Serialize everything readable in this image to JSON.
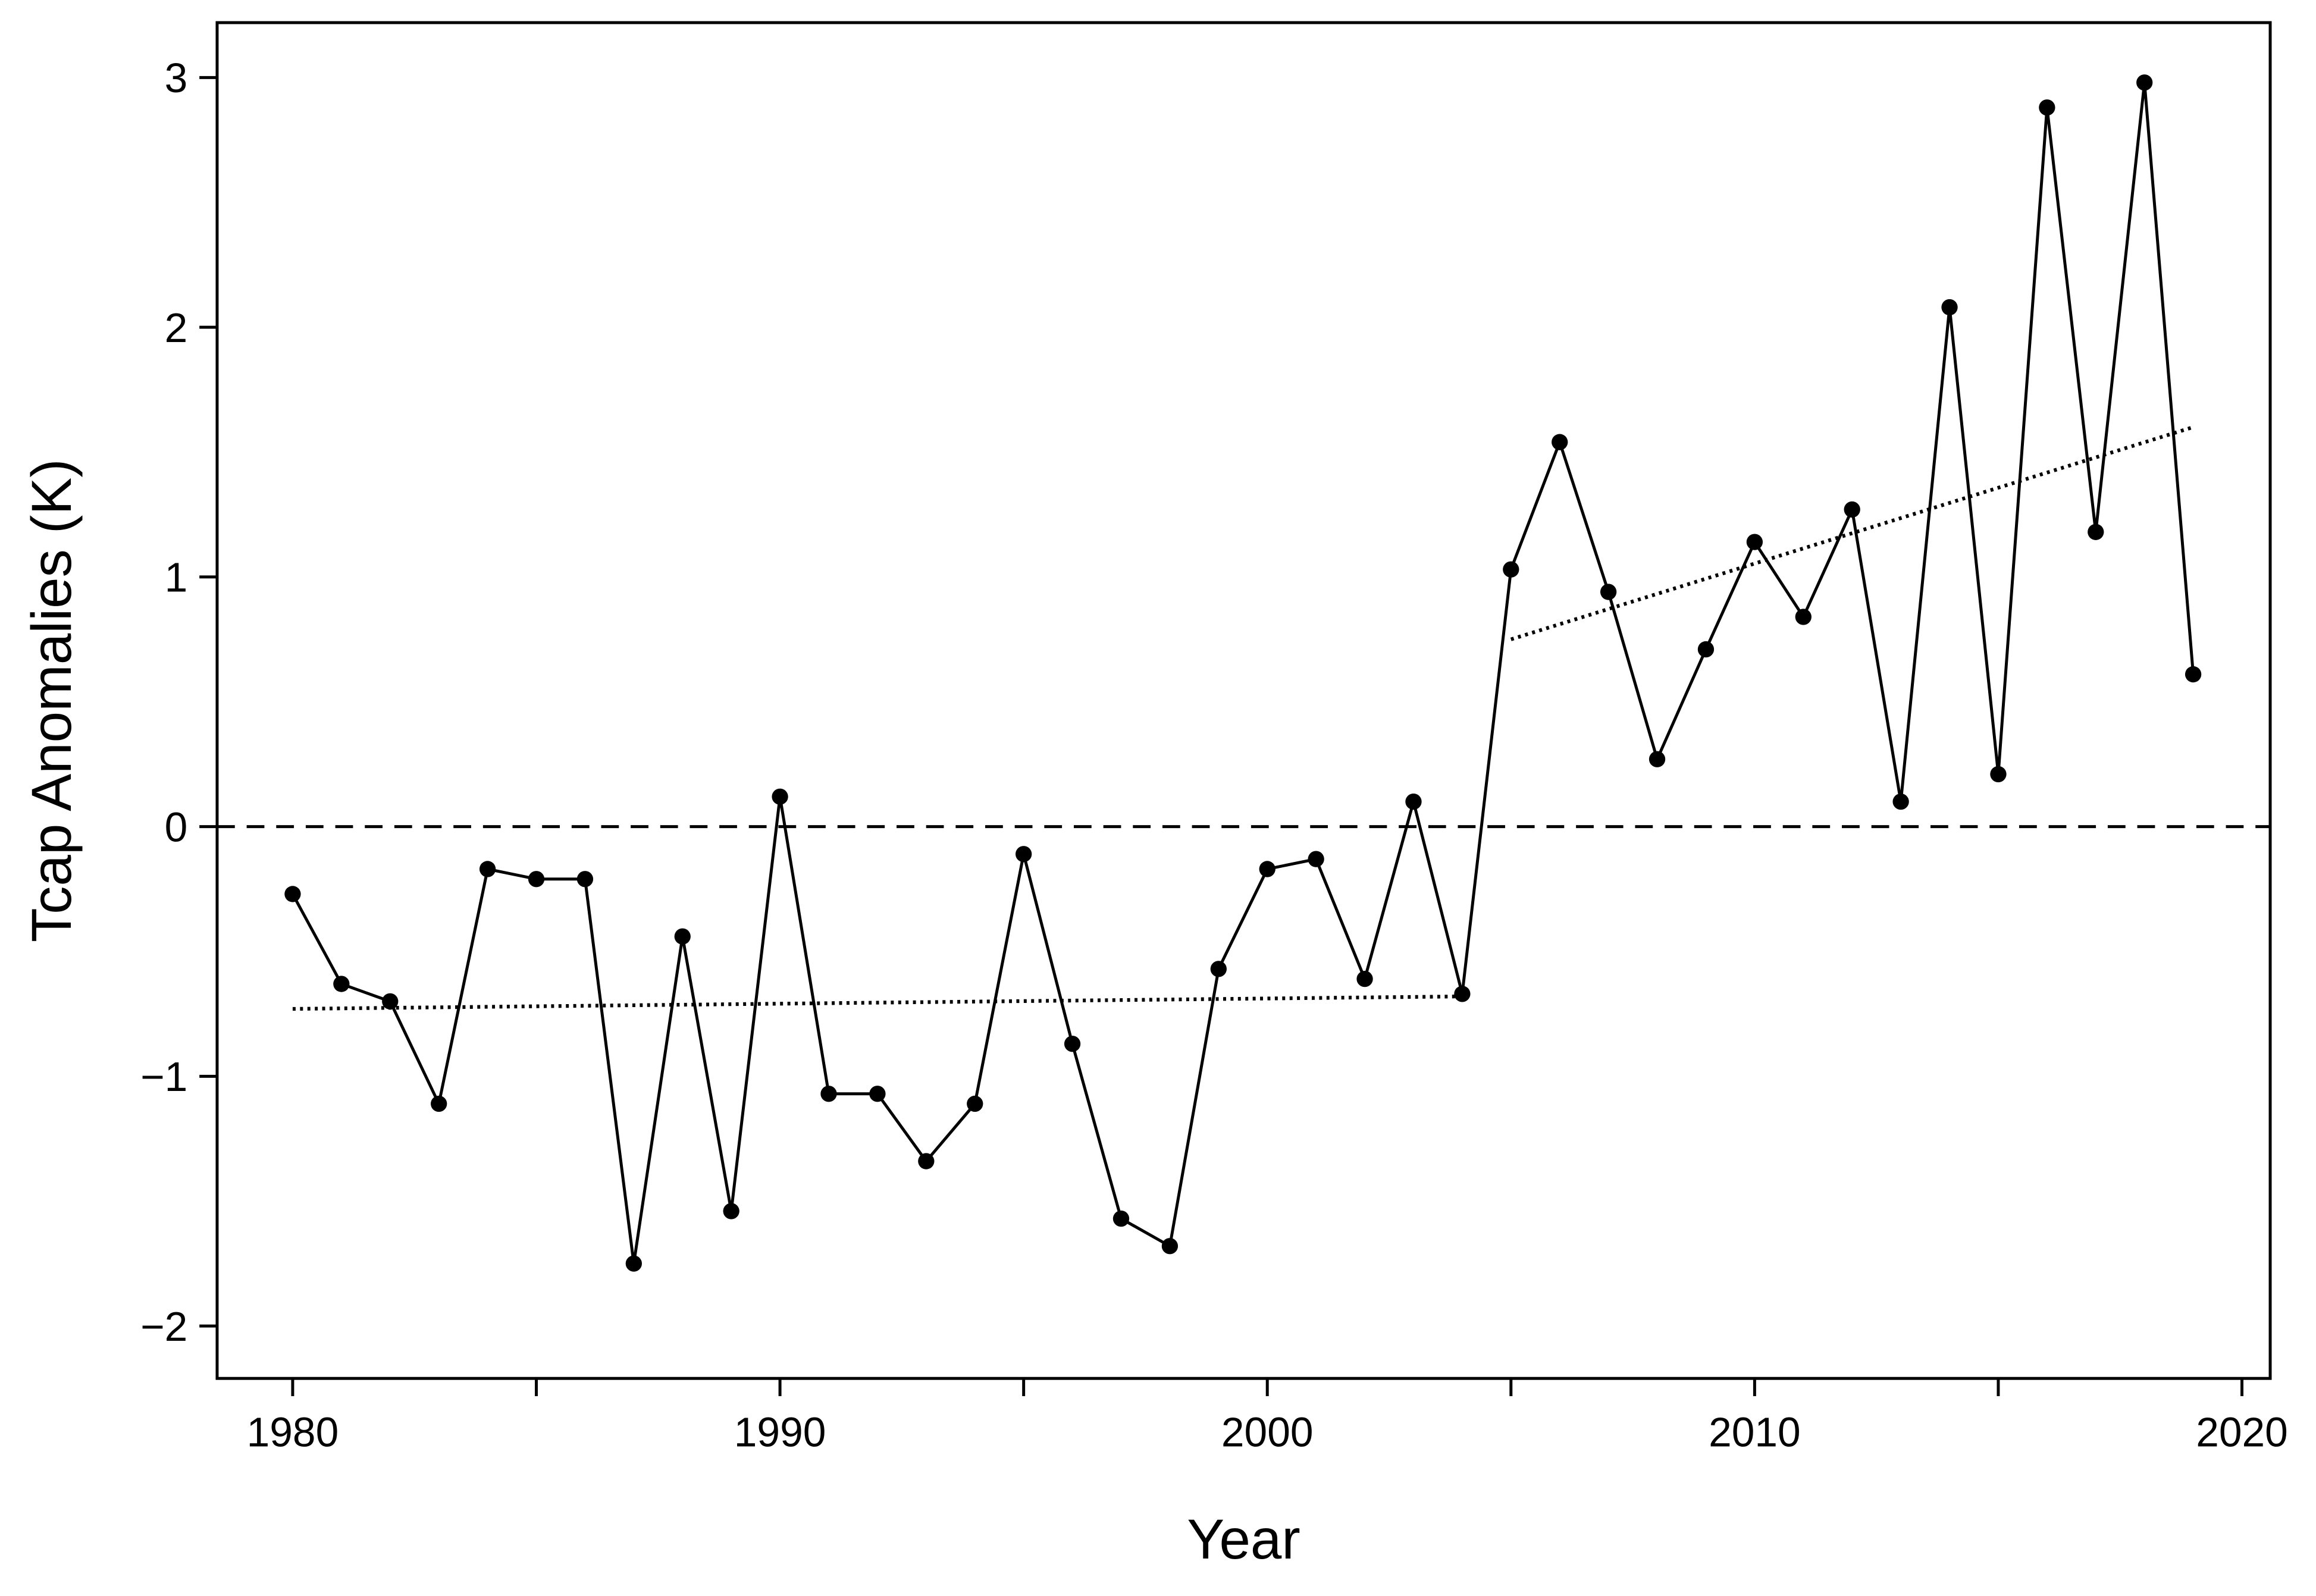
{
  "chart_data": {
    "type": "line",
    "x_label": "Year",
    "y_label": "Tcap Anomalies (K)",
    "x": [
      1980,
      1981,
      1982,
      1983,
      1984,
      1985,
      1986,
      1987,
      1988,
      1989,
      1990,
      1991,
      1992,
      1993,
      1994,
      1995,
      1996,
      1997,
      1998,
      1999,
      2000,
      2001,
      2002,
      2003,
      2004,
      2005,
      2006,
      2007,
      2008,
      2009,
      2010,
      2011,
      2012,
      2013,
      2014,
      2015,
      2016,
      2017,
      2018,
      2019
    ],
    "series": [
      {
        "color": "#000000",
        "values": [
          -0.27,
          -0.63,
          -0.7,
          -1.11,
          -0.17,
          -0.21,
          -0.21,
          -1.75,
          -0.44,
          -1.54,
          0.12,
          -1.07,
          -1.07,
          -1.34,
          -1.11,
          -0.11,
          -0.87,
          -1.57,
          -1.68,
          -0.57,
          -0.17,
          -0.13,
          -0.61,
          0.1,
          -0.67,
          1.03,
          1.54,
          0.94,
          0.27,
          0.71,
          1.14,
          0.84,
          1.27,
          0.1,
          2.08,
          0.21,
          2.88,
          1.18,
          2.98,
          0.61
        ]
      }
    ],
    "trend_lines": [
      {
        "x": [
          1980,
          2004
        ],
        "values": [
          -0.73,
          -0.68
        ]
      },
      {
        "x": [
          2005,
          2019
        ],
        "values": [
          0.75,
          1.6
        ]
      }
    ],
    "reference_line": 0,
    "xlim": [
      1978.45,
      2020.58
    ],
    "ylim": [
      -2.21,
      3.22
    ],
    "xticks": [
      1980,
      1990,
      2000,
      2010,
      2020
    ],
    "xminor_ticks": [
      1985,
      1995,
      2005,
      2015
    ],
    "yticks": [
      {
        "value": -2,
        "label": "−2"
      },
      {
        "value": -1,
        "label": "−1"
      },
      0,
      1,
      2,
      3
    ]
  }
}
